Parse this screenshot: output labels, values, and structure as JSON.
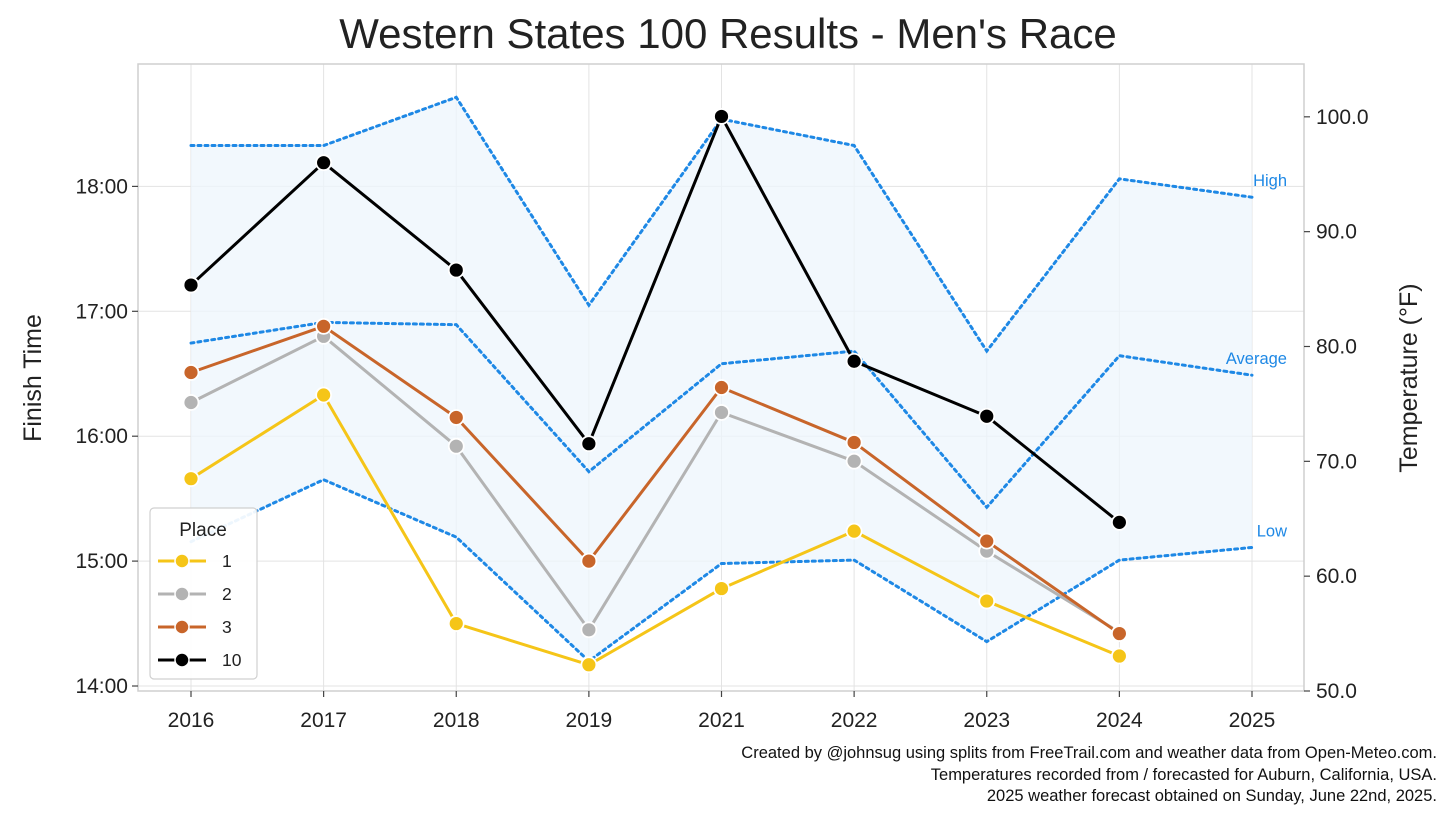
{
  "title": "Western States 100 Results - Men's Race",
  "credits": [
    "Created by @johnsug using splits from FreeTrail.com and weather data from Open-Meteo.com.",
    "Temperatures recorded from / forecasted for Auburn, California, USA.",
    "2025 weather forecast obtained on Sunday, June 22nd, 2025."
  ],
  "colors": {
    "place_1": "#f5c518",
    "place_2": "#b3b3b3",
    "place_3": "#c8652a",
    "place_10": "#000000",
    "temperature": "#1e88e5",
    "temperature_fill": "#eef5fc"
  },
  "chart_data": {
    "type": "line",
    "title": "Western States 100 Results - Men's Race",
    "xlabel": "",
    "ylabel": "Finish Time",
    "y2label": "Temperature (°F)",
    "categories": [
      "2016",
      "2017",
      "2018",
      "2019",
      "2021",
      "2022",
      "2023",
      "2024",
      "2025"
    ],
    "y_ticks": [
      "14:00",
      "15:00",
      "16:00",
      "17:00",
      "18:00"
    ],
    "y_tick_hours": [
      14,
      15,
      16,
      17,
      18
    ],
    "ylim_hours": [
      13.96,
      18.98
    ],
    "y2_ticks": [
      "50.0",
      "60.0",
      "70.0",
      "80.0",
      "90.0",
      "100.0"
    ],
    "y2_tick_values": [
      50,
      60,
      70,
      80,
      90,
      100
    ],
    "y2lim": [
      50,
      104.6
    ],
    "legend": {
      "title": "Place",
      "position": "lower-left"
    },
    "series": [
      {
        "name": "1",
        "color_key": "place_1",
        "values": [
          15.66,
          16.33,
          14.5,
          14.17,
          14.78,
          15.24,
          14.68,
          14.24,
          null
        ]
      },
      {
        "name": "2",
        "color_key": "place_2",
        "values": [
          16.27,
          16.8,
          15.92,
          14.45,
          16.19,
          15.8,
          15.08,
          14.43,
          null
        ]
      },
      {
        "name": "3",
        "color_key": "place_3",
        "values": [
          16.51,
          16.88,
          16.15,
          15.0,
          16.39,
          15.95,
          15.16,
          14.42,
          null
        ]
      },
      {
        "name": "10",
        "color_key": "place_10",
        "values": [
          17.21,
          18.19,
          17.33,
          15.94,
          18.56,
          16.6,
          16.16,
          15.31,
          null
        ]
      }
    ],
    "temperature_series": [
      {
        "name": "High",
        "values": [
          97.5,
          97.5,
          101.7,
          83.6,
          99.8,
          97.5,
          79.6,
          94.6,
          93.0
        ]
      },
      {
        "name": "Average",
        "values": [
          80.3,
          82.1,
          81.9,
          69.1,
          78.5,
          79.6,
          66.0,
          79.2,
          77.5
        ]
      },
      {
        "name": "Low",
        "values": [
          63.0,
          68.4,
          63.4,
          52.6,
          61.1,
          61.4,
          54.3,
          61.4,
          62.5
        ]
      }
    ]
  }
}
